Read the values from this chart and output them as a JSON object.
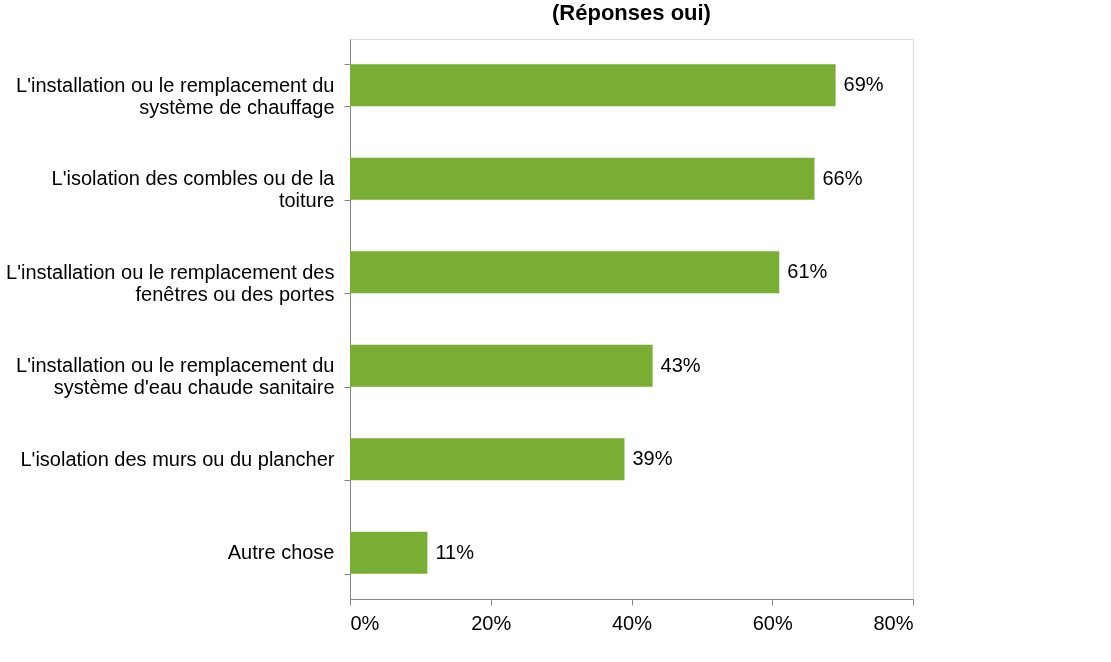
{
  "chart_data": {
    "type": "bar",
    "orientation": "horizontal",
    "title": "(Réponses oui)",
    "categories": [
      "L'installation ou le remplacement du système de chauffage",
      "L'isolation des combles ou de la toiture",
      "L'installation ou le remplacement des fenêtres ou des portes",
      "L'installation ou le remplacement du système d'eau chaude sanitaire",
      "L'isolation des murs ou du plancher",
      "Autre chose"
    ],
    "values": [
      69,
      66,
      61,
      43,
      39,
      11
    ],
    "value_labels": [
      "69%",
      "66%",
      "61%",
      "43%",
      "39%",
      "11%"
    ],
    "color": "#7aad34",
    "xlim": [
      0,
      80
    ],
    "xticks": [
      {
        "value": 0,
        "label": "0%"
      },
      {
        "value": 20,
        "label": "20%"
      },
      {
        "value": 40,
        "label": "40%"
      },
      {
        "value": 60,
        "label": "60%"
      },
      {
        "value": 80,
        "label": "80%"
      }
    ],
    "grid": false
  }
}
